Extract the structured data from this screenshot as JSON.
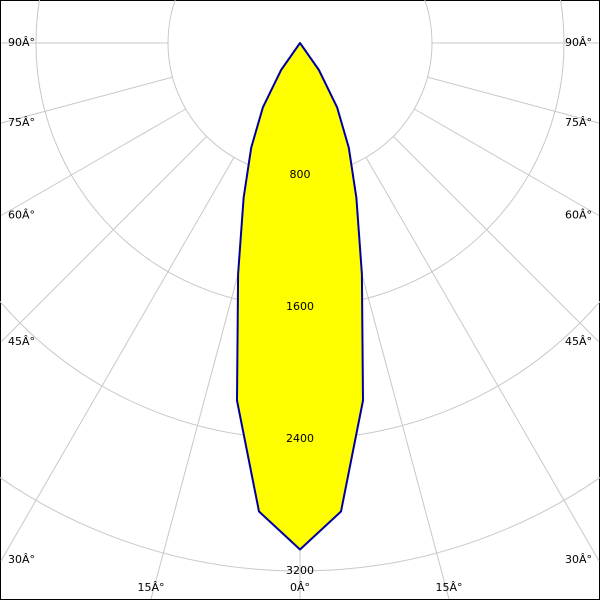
{
  "chart_data": {
    "type": "polar",
    "angle_ticks": [
      {
        "value": 90,
        "label": "90Â°"
      },
      {
        "value": 75,
        "label": "75Â°"
      },
      {
        "value": 60,
        "label": "60Â°"
      },
      {
        "value": 45,
        "label": "45Â°"
      },
      {
        "value": 30,
        "label": "30Â°"
      },
      {
        "value": 15,
        "label": "15Â°"
      },
      {
        "value": 0,
        "label": "0Â°"
      }
    ],
    "rlim": [
      0,
      3200
    ],
    "rticks": [
      800,
      1600,
      2400,
      3200
    ],
    "series": [
      {
        "color": "#ffff00",
        "edge_color": "#0000a0",
        "angles": [
          -40,
          -35,
          -30,
          -25,
          -20,
          -15,
          -10,
          -5,
          0,
          5,
          10,
          15,
          20,
          25,
          30,
          35,
          40
        ],
        "values": [
          0,
          200,
          450,
          700,
          1000,
          1450,
          2200,
          2850,
          3070,
          2850,
          2200,
          1450,
          1000,
          700,
          450,
          200,
          0
        ]
      }
    ]
  }
}
